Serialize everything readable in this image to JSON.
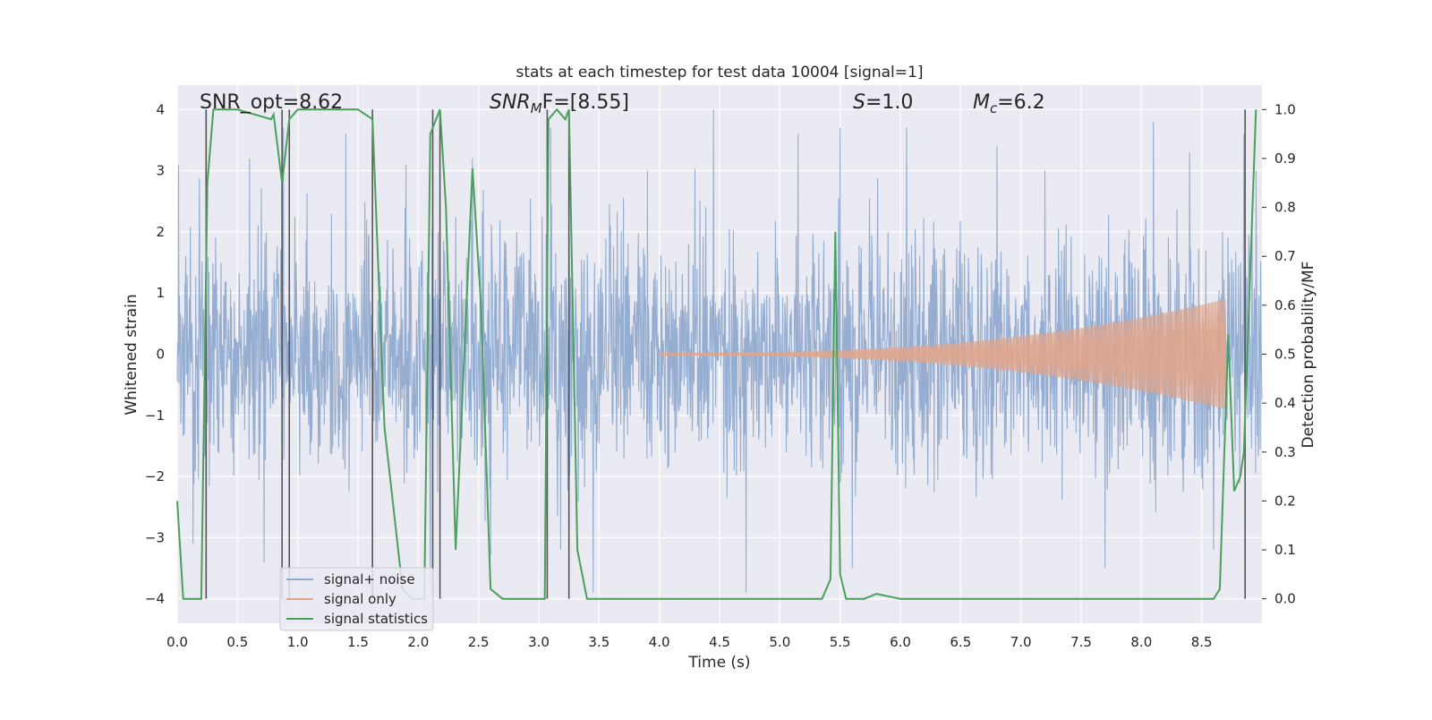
{
  "chart_data": {
    "type": "line",
    "title": "stats at each timestep for test data 10004 [signal=1]",
    "xlabel": "Time (s)",
    "ylabel": "Whitened strain",
    "ylabel_right": "Detection probability/MF",
    "xlim": [
      0.0,
      9.0
    ],
    "ylim": [
      -4.4,
      4.4
    ],
    "ylim_right": [
      -0.05,
      1.05
    ],
    "x_ticks": [
      "0.0",
      "0.5",
      "1.0",
      "1.5",
      "2.0",
      "2.5",
      "3.0",
      "3.5",
      "4.0",
      "4.5",
      "5.0",
      "5.5",
      "6.0",
      "6.5",
      "7.0",
      "7.5",
      "8.0",
      "8.5"
    ],
    "y_ticks": [
      "4",
      "3",
      "2",
      "1",
      "0",
      "−1",
      "−2",
      "−3",
      "−4"
    ],
    "y_ticks_right": [
      "1.0",
      "0.9",
      "0.8",
      "0.7",
      "0.6",
      "0.5",
      "0.4",
      "0.3",
      "0.2",
      "0.1",
      "0.0"
    ],
    "grid": true,
    "legend_position": "lower-left",
    "annotations": {
      "snr_opt": "SNR_opt=8.62",
      "snr_mf_prefix": "SNR",
      "snr_mf_sub": "M",
      "snr_mf_suffix": "F=[8.55]",
      "s_value_prefix": "S",
      "s_value_suffix": "=1.0",
      "mc_prefix": "M",
      "mc_sub": "c",
      "mc_suffix": "=6.2"
    },
    "series": [
      {
        "name": "signal+ noise",
        "color": "#8faacf",
        "description_free": true,
        "peak_times": [
          0.01,
          0.13,
          0.6,
          0.72,
          0.88,
          1.4,
          1.9,
          2.1,
          2.45,
          2.6,
          3.1,
          3.18,
          3.45,
          3.9,
          4.45,
          4.72,
          5.15,
          5.5,
          5.6,
          6.05,
          6.8,
          7.2,
          7.7,
          8.1,
          8.4,
          8.6,
          8.85,
          8.95
        ],
        "peak_values": [
          3.1,
          -3.1,
          3.2,
          -3.4,
          3.7,
          3.6,
          3.1,
          -3.7,
          3.2,
          -3.3,
          3.7,
          -3.2,
          -3.9,
          3.0,
          4.0,
          -3.9,
          3.6,
          3.7,
          -3.5,
          3.7,
          3.4,
          3.0,
          -3.5,
          3.8,
          3.3,
          -3.2,
          3.6,
          3.0
        ],
        "envelope_inner": 1.7,
        "envelope_outer": 2.6
      },
      {
        "name": "signal only",
        "color": "#e0a58c",
        "start": 4.0,
        "end": 8.7,
        "amplitude_start": 0.02,
        "amplitude_end": 0.9,
        "tail_min": -1.0
      },
      {
        "name": "signal statistics",
        "color": "#4aa05c",
        "x": [
          0.0,
          0.05,
          0.2,
          0.25,
          0.3,
          0.5,
          0.78,
          0.8,
          0.87,
          0.93,
          1.0,
          1.5,
          1.62,
          1.72,
          1.87,
          1.95,
          2.05,
          2.1,
          2.18,
          2.23,
          2.31,
          2.4,
          2.45,
          2.52,
          2.6,
          2.7,
          3.05,
          3.08,
          3.15,
          3.22,
          3.25,
          3.32,
          3.4,
          5.35,
          5.42,
          5.46,
          5.5,
          5.55,
          5.7,
          5.8,
          6.0,
          7.9,
          8.0,
          8.6,
          8.65,
          8.72,
          8.77,
          8.82,
          8.85,
          8.95
        ],
        "y": [
          0.2,
          0.0,
          0.0,
          0.85,
          1.0,
          1.0,
          0.98,
          0.99,
          0.85,
          0.98,
          1.0,
          1.0,
          0.98,
          0.35,
          0.02,
          0.0,
          0.0,
          0.95,
          1.0,
          0.8,
          0.1,
          0.6,
          0.88,
          0.6,
          0.02,
          0.0,
          0.0,
          0.98,
          1.0,
          0.98,
          1.0,
          0.1,
          0.0,
          0.0,
          0.04,
          0.75,
          0.05,
          0.0,
          0.0,
          0.01,
          0.0,
          0.0,
          0.0,
          0.0,
          0.02,
          0.54,
          0.22,
          0.25,
          0.3,
          1.0
        ]
      }
    ],
    "vertical_lines": [
      0.24,
      0.87,
      0.93,
      1.62,
      2.12,
      2.18,
      3.07,
      3.25,
      8.86
    ]
  }
}
